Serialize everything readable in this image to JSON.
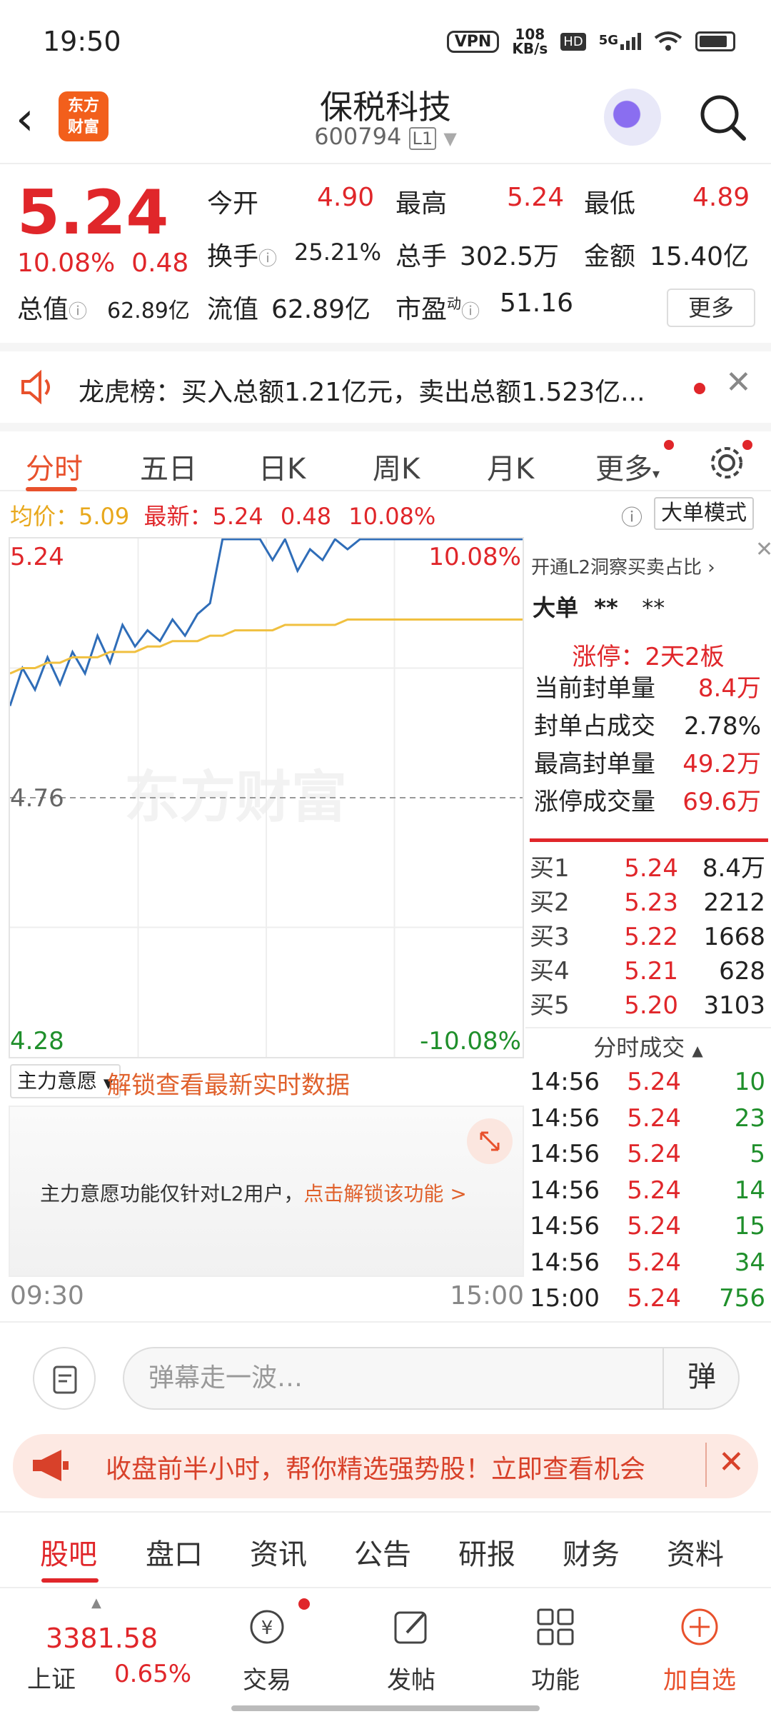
{
  "status_bar": {
    "time": "19:50",
    "vpn": "VPN",
    "net_speed": "108",
    "net_unit": "KB/s",
    "hd": "HD",
    "signal": "5G"
  },
  "header": {
    "logo_line1": "东方",
    "logo_line2": "财富",
    "title": "保税科技",
    "code": "600794",
    "level": "L1"
  },
  "quote": {
    "price": "5.24",
    "change_pct": "10.08%",
    "change": "0.48",
    "open_label": "今开",
    "open": "4.90",
    "high_label": "最高",
    "high": "5.24",
    "low_label": "最低",
    "low": "4.89",
    "turnover_label": "换手",
    "turnover": "25.21%",
    "volume_label": "总手",
    "volume": "302.5万",
    "amount_label": "金额",
    "amount": "15.40亿",
    "mktcap_label": "总值",
    "mktcap": "62.89亿",
    "float_label": "流值",
    "float": "62.89亿",
    "pe_label": "市盈",
    "pe_super": "动",
    "pe": "51.16",
    "more": "更多"
  },
  "banner": {
    "text": "龙虎榜：买入总额1.21亿元，卖出总额1.523亿..."
  },
  "tabs": [
    "分时",
    "五日",
    "日K",
    "周K",
    "月K",
    "更多"
  ],
  "avg_line": {
    "avg_label": "均价：",
    "avg": "5.09",
    "latest_label": "最新：",
    "latest": "5.24",
    "chg": "0.48",
    "pct": "10.08%",
    "mode": "大单模式"
  },
  "chart_data": {
    "type": "line",
    "y_left_ticks": [
      "5.24",
      "4.76",
      "4.28"
    ],
    "y_right_ticks": [
      "10.08%",
      "-10.08%"
    ],
    "x_ticks": [
      "09:30",
      "15:00"
    ],
    "ylim": [
      4.28,
      5.24
    ],
    "base": 4.76,
    "series": [
      {
        "values": [
          4.93,
          5.0,
          4.96,
          5.02,
          4.97,
          5.03,
          4.99,
          5.06,
          5.01,
          5.08,
          5.04,
          5.07,
          5.05,
          5.09,
          5.06,
          5.1,
          5.12,
          5.24,
          5.24,
          5.24,
          5.24,
          5.2,
          5.24,
          5.18,
          5.22,
          5.2,
          5.24,
          5.22,
          5.24,
          5.24,
          5.24,
          5.24,
          5.24,
          5.24,
          5.24,
          5.24,
          5.24,
          5.24,
          5.24,
          5.24,
          5.24,
          5.24
        ]
      },
      {
        "values": [
          4.99,
          5.0,
          5.0,
          5.01,
          5.01,
          5.02,
          5.02,
          5.02,
          5.03,
          5.03,
          5.03,
          5.04,
          5.04,
          5.05,
          5.05,
          5.05,
          5.06,
          5.06,
          5.07,
          5.07,
          5.07,
          5.07,
          5.08,
          5.08,
          5.08,
          5.08,
          5.08,
          5.09,
          5.09,
          5.09,
          5.09,
          5.09,
          5.09,
          5.09,
          5.09,
          5.09,
          5.09,
          5.09,
          5.09,
          5.09,
          5.09,
          5.09
        ]
      }
    ],
    "watermark": "东方财富"
  },
  "right_panel": {
    "l2_link": "开通L2洞察买卖占比",
    "big_order_label": "大单",
    "big_order_v1": "**",
    "big_order_v2": "**",
    "limit_up": "涨停：2天2板",
    "stats": [
      {
        "label": "当前封单量",
        "value": "8.4万"
      },
      {
        "label": "封单占成交",
        "value": "2.78%"
      },
      {
        "label": "最高封单量",
        "value": "49.2万"
      },
      {
        "label": "涨停成交量",
        "value": "69.6万"
      }
    ],
    "bids": [
      {
        "label": "买1",
        "price": "5.24",
        "vol": "8.4万"
      },
      {
        "label": "买2",
        "price": "5.23",
        "vol": "2212"
      },
      {
        "label": "买3",
        "price": "5.22",
        "vol": "1668"
      },
      {
        "label": "买4",
        "price": "5.21",
        "vol": "628"
      },
      {
        "label": "买5",
        "price": "5.20",
        "vol": "3103"
      }
    ],
    "ticks_title": "分时成交",
    "ticks": [
      {
        "time": "14:56",
        "price": "5.24",
        "vol": "10"
      },
      {
        "time": "14:56",
        "price": "5.24",
        "vol": "23"
      },
      {
        "time": "14:56",
        "price": "5.24",
        "vol": "5"
      },
      {
        "time": "14:56",
        "price": "5.24",
        "vol": "14"
      },
      {
        "time": "14:56",
        "price": "5.24",
        "vol": "15"
      },
      {
        "time": "14:56",
        "price": "5.24",
        "vol": "34"
      },
      {
        "time": "15:00",
        "price": "5.24",
        "vol": "756"
      }
    ]
  },
  "main_force": {
    "select": "主力意愿",
    "unlock": "解锁查看最新实时数据",
    "msg": "主力意愿功能仅针对L2用户，",
    "msg_link": "点击解锁该功能 >",
    "time_start": "09:30",
    "time_end": "15:00"
  },
  "danmu": {
    "placeholder": "弹幕走一波…",
    "btn": "弹"
  },
  "promo": {
    "text": "收盘前半小时，帮你精选强势股！立即查看机会"
  },
  "sub_tabs": [
    "股吧",
    "盘口",
    "资讯",
    "公告",
    "研报",
    "财务",
    "资料"
  ],
  "bottom_nav": {
    "index_value": "3381.58",
    "index_name": "上证",
    "index_pct": "0.65%",
    "items": [
      "交易",
      "发帖",
      "功能",
      "加自选"
    ]
  },
  "colors": {
    "up": "#e0262a",
    "down": "#1f8f2b",
    "accent": "#e8512c",
    "price_line": "#2f6db8",
    "avg_line": "#f0c040"
  }
}
